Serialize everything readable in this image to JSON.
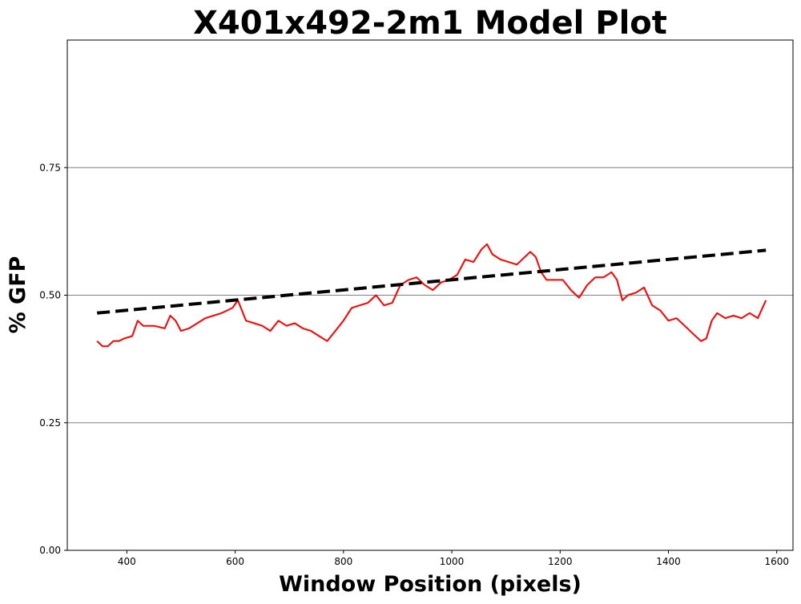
{
  "chart_data": {
    "type": "line",
    "title": "X401x492-2m1 Model Plot",
    "xlabel": "Window Position (pixels)",
    "ylabel": "% GFP",
    "xlim": [
      290,
      1630
    ],
    "ylim": [
      0,
      1.0
    ],
    "x_ticks": [
      400,
      600,
      800,
      1000,
      1200,
      1400,
      1600
    ],
    "x_tick_labels": [
      "400",
      "600",
      "800",
      "1000",
      "1200",
      "1400",
      "1600"
    ],
    "y_ticks": [
      0.0,
      0.25,
      0.5,
      0.75
    ],
    "y_tick_labels": [
      "0.00",
      "0.25",
      "0.50",
      "0.75"
    ],
    "grid": "horizontal",
    "colors": {
      "data_line": "#ff0000",
      "model_line": "#000000",
      "grid": "#808080"
    },
    "series": [
      {
        "style": "solid",
        "x": [
          345,
          355,
          365,
          375,
          385,
          395,
          410,
          420,
          430,
          450,
          470,
          480,
          490,
          500,
          515,
          530,
          545,
          560,
          575,
          585,
          595,
          605,
          620,
          635,
          650,
          665,
          680,
          695,
          710,
          725,
          740,
          755,
          770,
          785,
          800,
          815,
          830,
          845,
          860,
          875,
          890,
          905,
          920,
          935,
          950,
          965,
          980,
          995,
          1010,
          1025,
          1040,
          1055,
          1065,
          1075,
          1090,
          1105,
          1120,
          1135,
          1145,
          1155,
          1165,
          1175,
          1190,
          1205,
          1220,
          1235,
          1250,
          1265,
          1280,
          1295,
          1305,
          1315,
          1325,
          1340,
          1355,
          1370,
          1385,
          1400,
          1415,
          1430,
          1445,
          1460,
          1470,
          1480,
          1490,
          1505,
          1520,
          1535,
          1550,
          1565,
          1580
        ],
        "y": [
          0.41,
          0.4,
          0.4,
          0.41,
          0.41,
          0.415,
          0.42,
          0.45,
          0.44,
          0.44,
          0.435,
          0.46,
          0.45,
          0.43,
          0.435,
          0.445,
          0.455,
          0.46,
          0.465,
          0.47,
          0.475,
          0.49,
          0.45,
          0.445,
          0.44,
          0.43,
          0.45,
          0.44,
          0.445,
          0.435,
          0.43,
          0.42,
          0.41,
          0.43,
          0.45,
          0.475,
          0.48,
          0.485,
          0.5,
          0.48,
          0.485,
          0.52,
          0.53,
          0.535,
          0.52,
          0.51,
          0.525,
          0.53,
          0.54,
          0.57,
          0.565,
          0.59,
          0.6,
          0.58,
          0.57,
          0.565,
          0.56,
          0.575,
          0.585,
          0.575,
          0.545,
          0.53,
          0.53,
          0.53,
          0.51,
          0.495,
          0.52,
          0.535,
          0.535,
          0.545,
          0.53,
          0.49,
          0.5,
          0.505,
          0.515,
          0.48,
          0.47,
          0.45,
          0.455,
          0.44,
          0.425,
          0.41,
          0.415,
          0.45,
          0.465,
          0.455,
          0.46,
          0.455,
          0.465,
          0.455,
          0.49
        ]
      },
      {
        "style": "dashed",
        "x": [
          345,
          1580
        ],
        "y": [
          0.465,
          0.588
        ]
      }
    ]
  }
}
